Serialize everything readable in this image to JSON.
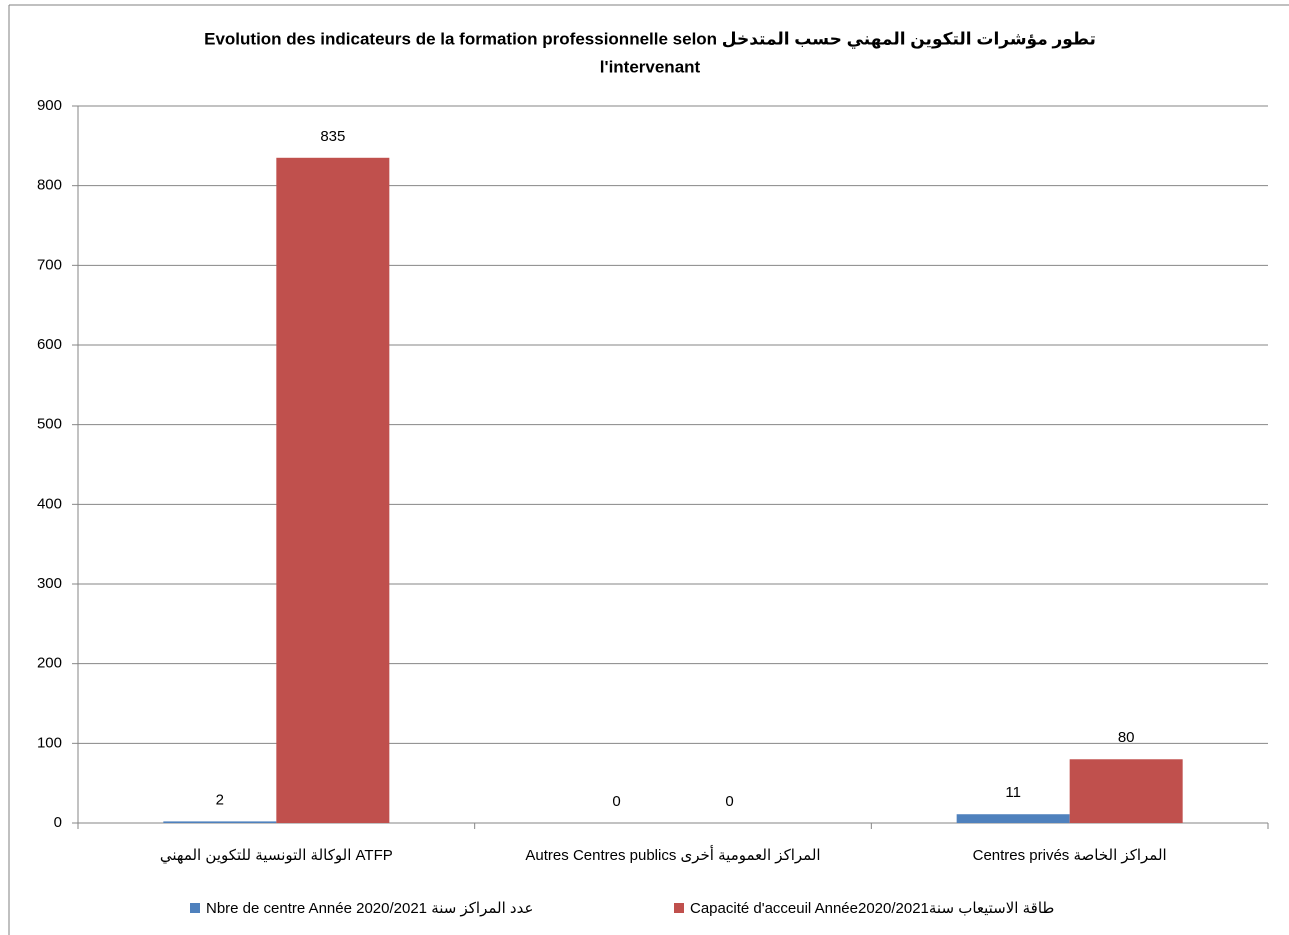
{
  "chart_data": {
    "type": "bar",
    "title": [
      "Evolution des indicateurs de  la formation professionnelle selon  تطور مؤشرات التكوين المهني حسب المتدخل",
      "l'intervenant"
    ],
    "categories": [
      "الوكالة التونسية للتكوين المهني  ATFP",
      "Autres Centres publics   المراكز العمومية أخرى",
      "Centres privés  المراكز الخاصة"
    ],
    "series": [
      {
        "name": "Nbre de centre Année   2020/2021 عدد المراكز سنة",
        "color": "#4f81bd",
        "values": [
          2,
          0,
          11
        ]
      },
      {
        "name": "Capacité d'acceuil Année2020/2021طاقة  الاستيعاب سنة",
        "color": "#c0504d",
        "values": [
          835,
          0,
          80
        ]
      }
    ],
    "ylim": [
      0,
      900
    ],
    "yticks": [
      0,
      100,
      200,
      300,
      400,
      500,
      600,
      700,
      800,
      900
    ],
    "grid": true,
    "legend": "bottom"
  }
}
